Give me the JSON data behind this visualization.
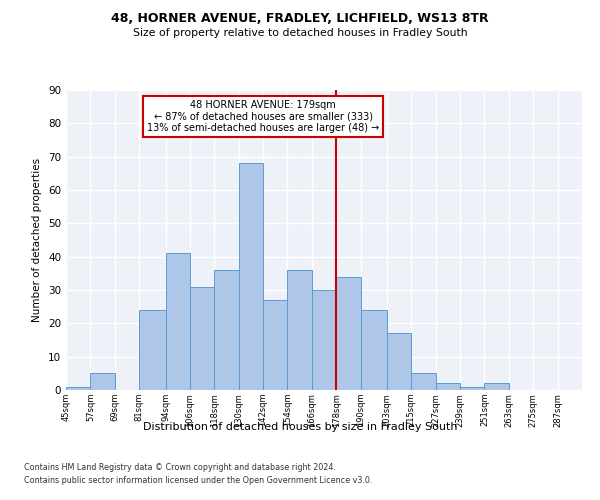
{
  "title1": "48, HORNER AVENUE, FRADLEY, LICHFIELD, WS13 8TR",
  "title2": "Size of property relative to detached houses in Fradley South",
  "xlabel": "Distribution of detached houses by size in Fradley South",
  "ylabel": "Number of detached properties",
  "bar_left_edges": [
    45,
    57,
    69,
    81,
    94,
    106,
    118,
    130,
    142,
    154,
    166,
    178,
    190,
    203,
    215,
    227,
    239,
    251,
    263,
    275
  ],
  "bar_heights": [
    1,
    5,
    0,
    24,
    41,
    31,
    36,
    68,
    27,
    36,
    30,
    34,
    24,
    17,
    5,
    2,
    1,
    2,
    0,
    0
  ],
  "bar_widths": [
    12,
    12,
    12,
    13,
    12,
    12,
    12,
    12,
    12,
    12,
    12,
    12,
    13,
    12,
    12,
    12,
    12,
    12,
    12,
    12
  ],
  "tick_labels": [
    "45sqm",
    "57sqm",
    "69sqm",
    "81sqm",
    "94sqm",
    "106sqm",
    "118sqm",
    "130sqm",
    "142sqm",
    "154sqm",
    "166sqm",
    "178sqm",
    "190sqm",
    "203sqm",
    "215sqm",
    "227sqm",
    "239sqm",
    "251sqm",
    "263sqm",
    "275sqm",
    "287sqm"
  ],
  "tick_positions": [
    45,
    57,
    69,
    81,
    94,
    106,
    118,
    130,
    142,
    154,
    166,
    178,
    190,
    203,
    215,
    227,
    239,
    251,
    263,
    275,
    287
  ],
  "bar_color": "#aec6e8",
  "bar_edge_color": "#5b9bd5",
  "vline_x": 178,
  "vline_color": "#cc0000",
  "annotation_text": "48 HORNER AVENUE: 179sqm\n← 87% of detached houses are smaller (333)\n13% of semi-detached houses are larger (48) →",
  "annotation_box_color": "#cc0000",
  "ylim": [
    0,
    90
  ],
  "yticks": [
    0,
    10,
    20,
    30,
    40,
    50,
    60,
    70,
    80,
    90
  ],
  "bg_color": "#eef2f8",
  "grid_color": "#ffffff",
  "footer1": "Contains HM Land Registry data © Crown copyright and database right 2024.",
  "footer2": "Contains public sector information licensed under the Open Government Licence v3.0."
}
